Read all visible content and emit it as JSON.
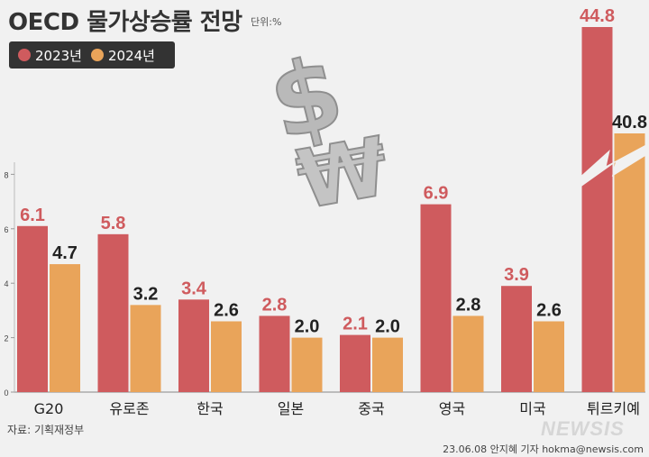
{
  "title": "OECD 물가상승률 전망",
  "unit": "단위:%",
  "legend": [
    {
      "label": "2023년",
      "color": "#cf5b5e"
    },
    {
      "label": "2024년",
      "color": "#e9a45a"
    }
  ],
  "source": "자료: 기획재정부",
  "byline": "23.06.08 안지혜 기자 hokma@newsis.com",
  "watermark": "NEWSIS",
  "colors": {
    "label_2023": "#cf5b5e",
    "label_2024": "#222222",
    "axis": "#888888",
    "tick_text": "#444444"
  },
  "chart_data": {
    "type": "bar",
    "categories": [
      "G20",
      "유로존",
      "한국",
      "일본",
      "중국",
      "영국",
      "미국",
      "튀르키예"
    ],
    "series": [
      {
        "name": "2023년",
        "values": [
          6.1,
          5.8,
          3.4,
          2.8,
          2.1,
          6.9,
          3.9,
          44.8
        ]
      },
      {
        "name": "2024년",
        "values": [
          4.7,
          3.2,
          2.6,
          2.0,
          2.0,
          2.8,
          2.6,
          40.8
        ]
      }
    ],
    "yticks": [
      0,
      2,
      4,
      6,
      8
    ],
    "ylim": [
      0,
      8
    ],
    "axis_break": "튀르키예",
    "decoration": [
      "dollar-sign-icon",
      "won-sign-icon"
    ]
  }
}
